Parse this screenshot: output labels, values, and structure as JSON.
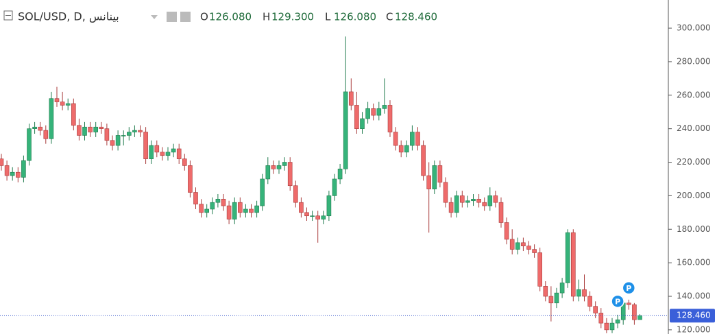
{
  "chart_data": {
    "type": "candlestick",
    "title": "SOL/USD, D, بينانس",
    "header_fields": [
      {
        "key": "O",
        "text": "126.080"
      },
      {
        "key": "H",
        "text": "129.300"
      },
      {
        "key": "L",
        "text": "126.080"
      },
      {
        "key": "C",
        "text": "128.460"
      }
    ],
    "last_price_label": "128.460",
    "markers": [
      {
        "text": "P",
        "index": 111,
        "value": 137
      },
      {
        "text": "P",
        "index": 113,
        "value": 145
      }
    ],
    "up_color": "#36b37a",
    "down_color": "#ee6b6b",
    "ylim": [
      117.5,
      316.8
    ],
    "yticks": [
      {
        "value": 120,
        "label": "120.000"
      },
      {
        "value": 140,
        "label": "140.000"
      },
      {
        "value": 160,
        "label": "160.000"
      },
      {
        "value": 180,
        "label": "180.000"
      },
      {
        "value": 200,
        "label": "200.000"
      },
      {
        "value": 220,
        "label": "220.000"
      },
      {
        "value": 240,
        "label": "240.000"
      },
      {
        "value": 260,
        "label": "260.000"
      },
      {
        "value": 280,
        "label": "280.000"
      },
      {
        "value": 300,
        "label": "300.000"
      }
    ],
    "open": [
      222,
      218,
      212,
      214,
      211,
      221,
      240,
      241,
      239,
      234,
      258,
      256,
      254,
      255,
      242,
      236,
      241,
      238,
      241,
      240,
      233,
      230,
      236,
      236,
      238,
      239,
      238,
      222,
      230,
      226,
      224,
      226,
      228,
      222,
      218,
      202,
      195,
      190,
      192,
      196,
      198,
      194,
      186,
      196,
      190,
      192,
      190,
      194,
      210,
      218,
      216,
      218,
      220,
      206,
      196,
      190,
      188,
      188,
      186,
      188,
      200,
      210,
      216,
      262,
      254,
      240,
      246,
      252,
      248,
      252,
      254,
      238,
      230,
      226,
      230,
      238,
      230,
      212,
      204,
      218,
      208,
      196,
      190,
      200,
      196,
      197,
      198,
      196,
      194,
      200,
      196,
      184,
      174,
      168,
      172,
      170,
      168,
      166,
      146,
      140,
      136,
      142,
      148,
      178,
      140,
      144,
      140,
      134,
      130,
      124,
      120,
      124,
      126,
      136,
      135,
      126.08
    ],
    "high": [
      225,
      221,
      217,
      217,
      224,
      243,
      244,
      244,
      242,
      262,
      265,
      262,
      258,
      258,
      246,
      244,
      244,
      244,
      244,
      243,
      236,
      239,
      239,
      241,
      242,
      242,
      241,
      233,
      233,
      229,
      229,
      231,
      231,
      225,
      221,
      205,
      198,
      195,
      199,
      201,
      201,
      197,
      199,
      199,
      195,
      195,
      197,
      213,
      223,
      221,
      221,
      223,
      223,
      209,
      199,
      193,
      191,
      191,
      191,
      203,
      213,
      219,
      295,
      270,
      262,
      250,
      256,
      255,
      256,
      270,
      257,
      241,
      233,
      233,
      242,
      241,
      233,
      220,
      221,
      221,
      211,
      199,
      203,
      203,
      200,
      201,
      201,
      199,
      205,
      203,
      199,
      187,
      180,
      175,
      175,
      173,
      171,
      169,
      149,
      146,
      145,
      151,
      180,
      180,
      150,
      153,
      143,
      137,
      133,
      127,
      127,
      129,
      139,
      138,
      136,
      129.3
    ],
    "low": [
      215,
      209,
      209,
      208,
      208,
      218,
      237,
      236,
      231,
      231,
      253,
      251,
      251,
      239,
      233,
      233,
      235,
      235,
      237,
      230,
      227,
      227,
      230,
      233,
      235,
      235,
      219,
      219,
      223,
      221,
      221,
      223,
      219,
      215,
      199,
      192,
      187,
      187,
      189,
      193,
      191,
      183,
      183,
      187,
      187,
      187,
      187,
      191,
      207,
      213,
      213,
      215,
      203,
      193,
      187,
      185,
      185,
      172,
      183,
      185,
      197,
      207,
      213,
      251,
      237,
      237,
      243,
      245,
      245,
      249,
      235,
      227,
      223,
      223,
      227,
      227,
      209,
      178,
      201,
      205,
      193,
      187,
      187,
      193,
      193,
      194,
      193,
      191,
      191,
      193,
      181,
      171,
      165,
      165,
      167,
      165,
      163,
      143,
      137,
      125,
      133,
      139,
      145,
      137,
      137,
      137,
      131,
      127,
      121,
      118,
      118,
      121,
      123,
      132,
      123,
      126.08
    ],
    "close": [
      218,
      212,
      214,
      211,
      221,
      240,
      241,
      239,
      234,
      258,
      256,
      254,
      255,
      242,
      236,
      241,
      238,
      241,
      240,
      233,
      230,
      236,
      236,
      238,
      239,
      238,
      222,
      230,
      226,
      224,
      226,
      228,
      222,
      218,
      202,
      195,
      190,
      192,
      196,
      198,
      194,
      186,
      196,
      190,
      192,
      190,
      194,
      210,
      218,
      216,
      218,
      220,
      206,
      196,
      190,
      188,
      188,
      186,
      188,
      200,
      210,
      216,
      262,
      254,
      240,
      246,
      252,
      248,
      252,
      254,
      238,
      230,
      226,
      230,
      238,
      230,
      212,
      204,
      218,
      208,
      196,
      190,
      200,
      196,
      197,
      198,
      196,
      194,
      200,
      196,
      184,
      174,
      168,
      172,
      170,
      168,
      166,
      146,
      140,
      136,
      142,
      148,
      178,
      140,
      144,
      140,
      134,
      130,
      124,
      120,
      124,
      126,
      136,
      135,
      126,
      128.46
    ]
  }
}
